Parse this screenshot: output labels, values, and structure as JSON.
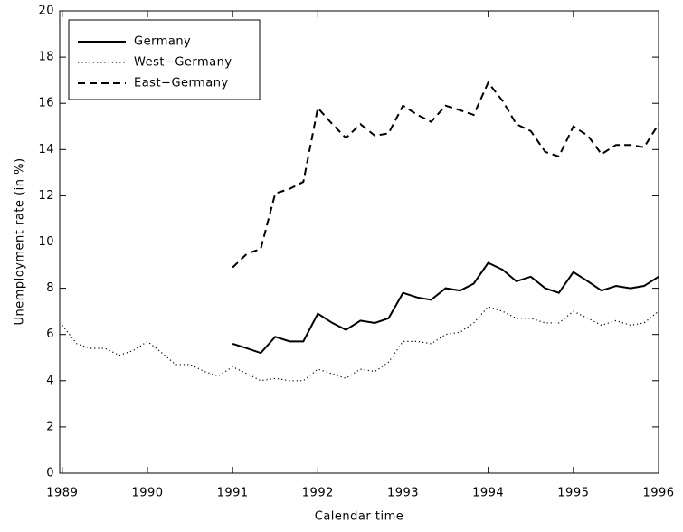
{
  "chart_data": {
    "type": "line",
    "x_label": "Calendar time",
    "y_label": "Unemployment rate (in %)",
    "x": [
      1989,
      1989.17,
      1989.33,
      1989.5,
      1989.67,
      1989.83,
      1990,
      1990.17,
      1990.33,
      1990.5,
      1990.67,
      1990.83,
      1991,
      1991.17,
      1991.33,
      1991.5,
      1991.67,
      1991.83,
      1992,
      1992.17,
      1992.33,
      1992.5,
      1992.67,
      1992.83,
      1993,
      1993.17,
      1993.33,
      1993.5,
      1993.67,
      1993.83,
      1994,
      1994.17,
      1994.33,
      1994.5,
      1994.67,
      1994.83,
      1995,
      1995.17,
      1995.33,
      1995.5,
      1995.67,
      1995.83,
      1996
    ],
    "series": [
      {
        "name": "Germany",
        "color": "#000000",
        "style": "solid",
        "values": [
          null,
          null,
          null,
          null,
          null,
          null,
          null,
          null,
          null,
          null,
          null,
          null,
          5.6,
          5.4,
          5.2,
          5.9,
          5.7,
          5.7,
          6.9,
          6.5,
          6.2,
          6.6,
          6.5,
          6.7,
          7.8,
          7.6,
          7.5,
          8.0,
          7.9,
          8.2,
          9.1,
          8.8,
          8.3,
          8.5,
          8.0,
          7.8,
          8.7,
          8.3,
          7.9,
          8.1,
          8.0,
          8.1,
          8.5
        ]
      },
      {
        "name": "West−Germany",
        "color": "#000000",
        "style": "dotted",
        "values": [
          6.4,
          5.6,
          5.4,
          5.4,
          5.1,
          5.3,
          5.7,
          5.2,
          4.7,
          4.7,
          4.4,
          4.2,
          4.6,
          4.3,
          4.0,
          4.1,
          4.0,
          4.0,
          4.5,
          4.3,
          4.1,
          4.5,
          4.4,
          4.8,
          5.7,
          5.7,
          5.6,
          6.0,
          6.1,
          6.5,
          7.2,
          7.0,
          6.7,
          6.7,
          6.5,
          6.5,
          7.0,
          6.7,
          6.4,
          6.6,
          6.4,
          6.5,
          7.0
        ]
      },
      {
        "name": "East−Germany",
        "color": "#000000",
        "style": "dashed",
        "values": [
          null,
          null,
          null,
          null,
          null,
          null,
          null,
          null,
          null,
          null,
          null,
          null,
          8.9,
          9.5,
          9.7,
          12.1,
          12.3,
          12.6,
          15.8,
          15.1,
          14.5,
          15.1,
          14.6,
          14.7,
          15.9,
          15.5,
          15.2,
          15.9,
          15.7,
          15.5,
          16.9,
          16.1,
          15.1,
          14.8,
          13.9,
          13.7,
          15.0,
          14.6,
          13.8,
          14.2,
          14.2,
          14.1,
          15.1
        ]
      }
    ],
    "xlim": [
      1988.97,
      1996
    ],
    "xticks": [
      1989,
      1990,
      1991,
      1992,
      1993,
      1994,
      1995,
      1996
    ],
    "ylim": [
      0,
      20
    ],
    "yticks": [
      0,
      2,
      4,
      6,
      8,
      10,
      12,
      14,
      16,
      18,
      20
    ],
    "legend": "upper-left"
  }
}
